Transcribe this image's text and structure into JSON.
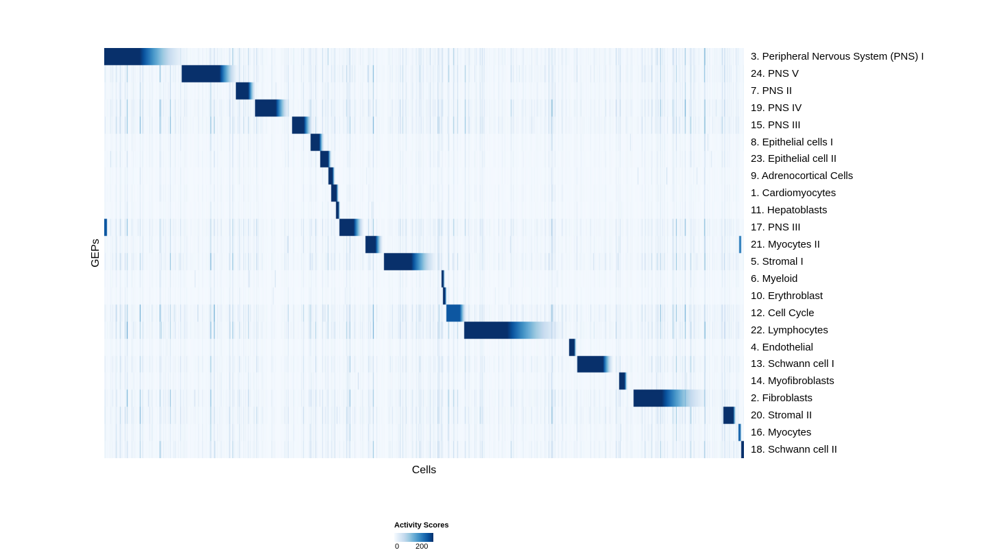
{
  "legend": {
    "title": "Activity Scores",
    "min_label": "0",
    "max_label": "200"
  },
  "chart_data": {
    "type": "heatmap",
    "xlabel": "Cells",
    "ylabel": "GEPs",
    "value_range": [
      0,
      200
    ],
    "legend_position": "bottom",
    "colormap": {
      "name": "Blues",
      "stops": [
        [
          0.0,
          "#f7fbff"
        ],
        [
          0.125,
          "#deebf7"
        ],
        [
          0.25,
          "#c6dbef"
        ],
        [
          0.375,
          "#9ecae1"
        ],
        [
          0.5,
          "#6baed6"
        ],
        [
          0.625,
          "#4292c6"
        ],
        [
          0.75,
          "#2171b5"
        ],
        [
          0.875,
          "#08519c"
        ],
        [
          1.0,
          "#08306b"
        ]
      ]
    },
    "rows": [
      {
        "label": "3. Peripheral Nervous System (PNS) I",
        "noise": 0.8,
        "block": {
          "start": 0.0,
          "peak_end": 0.055,
          "fade_end": 0.135,
          "intensity": 1.0
        }
      },
      {
        "label": "24. PNS V",
        "noise": 0.8,
        "block": {
          "start": 0.121,
          "peak_end": 0.18,
          "fade_end": 0.212,
          "intensity": 1.0
        }
      },
      {
        "label": "7. PNS II",
        "noise": 0.6,
        "block": {
          "start": 0.205,
          "peak_end": 0.225,
          "fade_end": 0.238,
          "intensity": 1.0
        }
      },
      {
        "label": "19. PNS IV",
        "noise": 0.9,
        "block": {
          "start": 0.236,
          "peak_end": 0.268,
          "fade_end": 0.292,
          "intensity": 1.0
        }
      },
      {
        "label": "15. PNS III",
        "noise": 0.9,
        "block": {
          "start": 0.293,
          "peak_end": 0.312,
          "fade_end": 0.328,
          "intensity": 1.0
        }
      },
      {
        "label": "8. Epithelial cells I",
        "noise": 0.4,
        "block": {
          "start": 0.322,
          "peak_end": 0.336,
          "fade_end": 0.345,
          "intensity": 1.0
        }
      },
      {
        "label": "23. Epithelial cell II",
        "noise": 0.4,
        "block": {
          "start": 0.337,
          "peak_end": 0.35,
          "fade_end": 0.356,
          "intensity": 1.0
        }
      },
      {
        "label": "9. Adrenocortical Cells",
        "noise": 0.3,
        "block": {
          "start": 0.35,
          "peak_end": 0.357,
          "fade_end": 0.361,
          "intensity": 1.0
        }
      },
      {
        "label": "1. Cardiomyocytes",
        "noise": 0.35,
        "block": {
          "start": 0.355,
          "peak_end": 0.363,
          "fade_end": 0.367,
          "intensity": 1.0
        }
      },
      {
        "label": "11. Hepatoblasts",
        "noise": 0.3,
        "block": {
          "start": 0.362,
          "peak_end": 0.366,
          "fade_end": 0.369,
          "intensity": 1.0
        }
      },
      {
        "label": "17. PNS III",
        "noise": 0.8,
        "block": {
          "start": 0.367,
          "peak_end": 0.39,
          "fade_end": 0.408,
          "intensity": 1.0
        },
        "extras": [
          {
            "pos": 0.0,
            "width": 0.004,
            "intensity": 0.85
          }
        ]
      },
      {
        "label": "21. Myocytes II",
        "noise": 0.6,
        "block": {
          "start": 0.408,
          "peak_end": 0.424,
          "fade_end": 0.437,
          "intensity": 1.0
        },
        "extras": [
          {
            "pos": 0.993,
            "width": 0.003,
            "intensity": 0.7
          }
        ]
      },
      {
        "label": "5. Stromal I",
        "noise": 0.8,
        "block": {
          "start": 0.437,
          "peak_end": 0.48,
          "fade_end": 0.525,
          "intensity": 1.0
        }
      },
      {
        "label": "6. Myeloid",
        "noise": 0.35,
        "block": {
          "start": 0.527,
          "peak_end": 0.53,
          "fade_end": 0.533,
          "intensity": 1.0
        }
      },
      {
        "label": "10. Erythroblast",
        "noise": 0.3,
        "block": {
          "start": 0.53,
          "peak_end": 0.533,
          "fade_end": 0.536,
          "intensity": 1.0
        }
      },
      {
        "label": "12. Cell Cycle",
        "noise": 0.95,
        "block": {
          "start": 0.535,
          "peak_end": 0.556,
          "fade_end": 0.568,
          "intensity": 0.85
        }
      },
      {
        "label": "22. Lymphocytes",
        "noise": 0.95,
        "block": {
          "start": 0.563,
          "peak_end": 0.63,
          "fade_end": 0.728,
          "intensity": 1.0
        }
      },
      {
        "label": "4. Endothelial",
        "noise": 0.4,
        "block": {
          "start": 0.727,
          "peak_end": 0.735,
          "fade_end": 0.739,
          "intensity": 1.0
        }
      },
      {
        "label": "13. Schwann cell I",
        "noise": 0.7,
        "block": {
          "start": 0.74,
          "peak_end": 0.78,
          "fade_end": 0.798,
          "intensity": 1.0
        }
      },
      {
        "label": "14. Myofibroblasts",
        "noise": 0.5,
        "block": {
          "start": 0.805,
          "peak_end": 0.814,
          "fade_end": 0.819,
          "intensity": 1.0
        }
      },
      {
        "label": "2. Fibroblasts",
        "noise": 0.8,
        "block": {
          "start": 0.828,
          "peak_end": 0.872,
          "fade_end": 0.952,
          "intensity": 1.0
        }
      },
      {
        "label": "20. Stromal II",
        "noise": 0.8,
        "block": {
          "start": 0.968,
          "peak_end": 0.984,
          "fade_end": 0.989,
          "intensity": 1.0
        }
      },
      {
        "label": "16. Myocytes",
        "noise": 0.6,
        "block": {
          "start": 0.992,
          "peak_end": 0.995,
          "fade_end": 0.997,
          "intensity": 0.8
        }
      },
      {
        "label": "18. Schwann cell II",
        "noise": 0.7,
        "block": {
          "start": 0.996,
          "peak_end": 1.0,
          "fade_end": 1.0,
          "intensity": 1.0
        }
      }
    ]
  }
}
